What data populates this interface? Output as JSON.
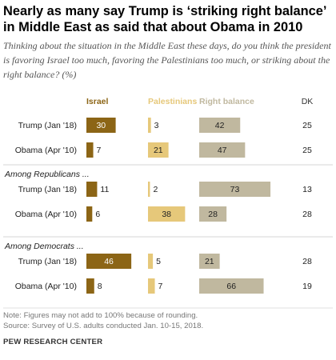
{
  "title": "Nearly as many say Trump is ‘striking right balance’ in Middle East as said that about Obama in 2010",
  "subtitle": "Thinking about the situation in the Middle East these days, do you think the president is favoring Israel too much, favoring the Palestinians too much, or striking about the right balance? (%)",
  "note": "Note: Figures may not add to 100% because of rounding.",
  "source": "Source: Survey of U.S. adults conducted Jan. 10-15, 2018.",
  "credit": "PEW RESEARCH CENTER",
  "colors": {
    "Israel": "#8c6516",
    "Palestinians": "#e6c87a",
    "Right balance": "#c0b89f",
    "text_label_dark": "#ffffff",
    "text_label_light": "#222222"
  },
  "chart_data": {
    "type": "bar",
    "orientation": "horizontal",
    "stacking": "side-by-side panels",
    "columns": [
      "Israel",
      "Palestinians",
      "Right balance",
      "DK"
    ],
    "groups": [
      {
        "label": "",
        "rows": [
          {
            "label": "Trump (Jan '18)",
            "Israel": 30,
            "Palestinians": 3,
            "Right balance": 42,
            "DK": 25
          },
          {
            "label": "Obama (Apr '10)",
            "Israel": 7,
            "Palestinians": 21,
            "Right balance": 47,
            "DK": 25
          }
        ]
      },
      {
        "label": "Among Republicans ...",
        "rows": [
          {
            "label": "Trump (Jan '18)",
            "Israel": 11,
            "Palestinians": 2,
            "Right balance": 73,
            "DK": 13
          },
          {
            "label": "Obama (Apr '10)",
            "Israel": 6,
            "Palestinians": 38,
            "Right balance": 28,
            "DK": 28
          }
        ]
      },
      {
        "label": "Among Democrats ...",
        "rows": [
          {
            "label": "Trump (Jan '18)",
            "Israel": 46,
            "Palestinians": 5,
            "Right balance": 21,
            "DK": 28
          },
          {
            "label": "Obama (Apr '10)",
            "Israel": 8,
            "Palestinians": 7,
            "Right balance": 66,
            "DK": 19
          }
        ]
      }
    ]
  }
}
